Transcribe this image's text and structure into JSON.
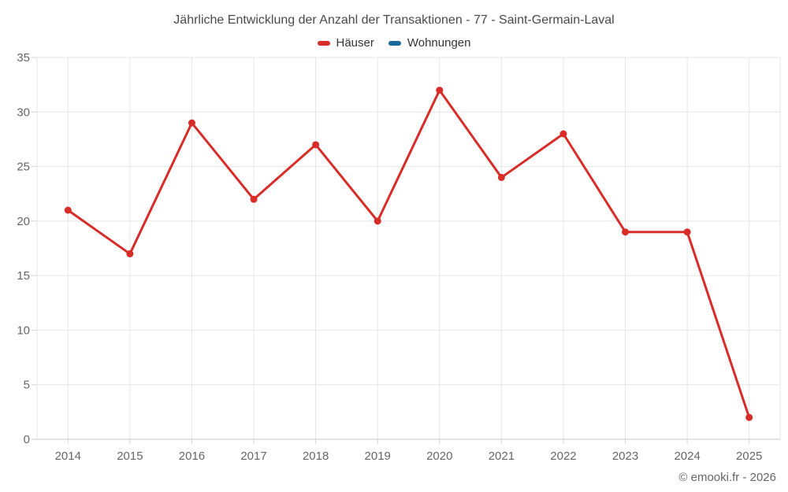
{
  "chart": {
    "footer": "© emooki.fr - 2026"
  },
  "chart_data": {
    "type": "line",
    "title": "Jährliche Entwicklung der Anzahl der Transaktionen - 77 - Saint-Germain-Laval",
    "xlabel": "",
    "ylabel": "",
    "categories": [
      "2014",
      "2015",
      "2016",
      "2017",
      "2018",
      "2019",
      "2020",
      "2021",
      "2022",
      "2023",
      "2024",
      "2025"
    ],
    "series": [
      {
        "name": "Häuser",
        "color": "#d82c28",
        "values": [
          21,
          17,
          29,
          22,
          27,
          20,
          32,
          24,
          28,
          19,
          19,
          2
        ]
      },
      {
        "name": "Wohnungen",
        "color": "#17699e",
        "values": []
      }
    ],
    "ylim": [
      0,
      35
    ],
    "ytick_step": 5,
    "grid": true,
    "legend_position": "top",
    "colors": {
      "gridline": "#e6e6e6",
      "axis_line": "#c9c9c9",
      "tick": "#d4d4d4",
      "axis_label": "#666666",
      "title_text": "#4a4a4a"
    }
  }
}
